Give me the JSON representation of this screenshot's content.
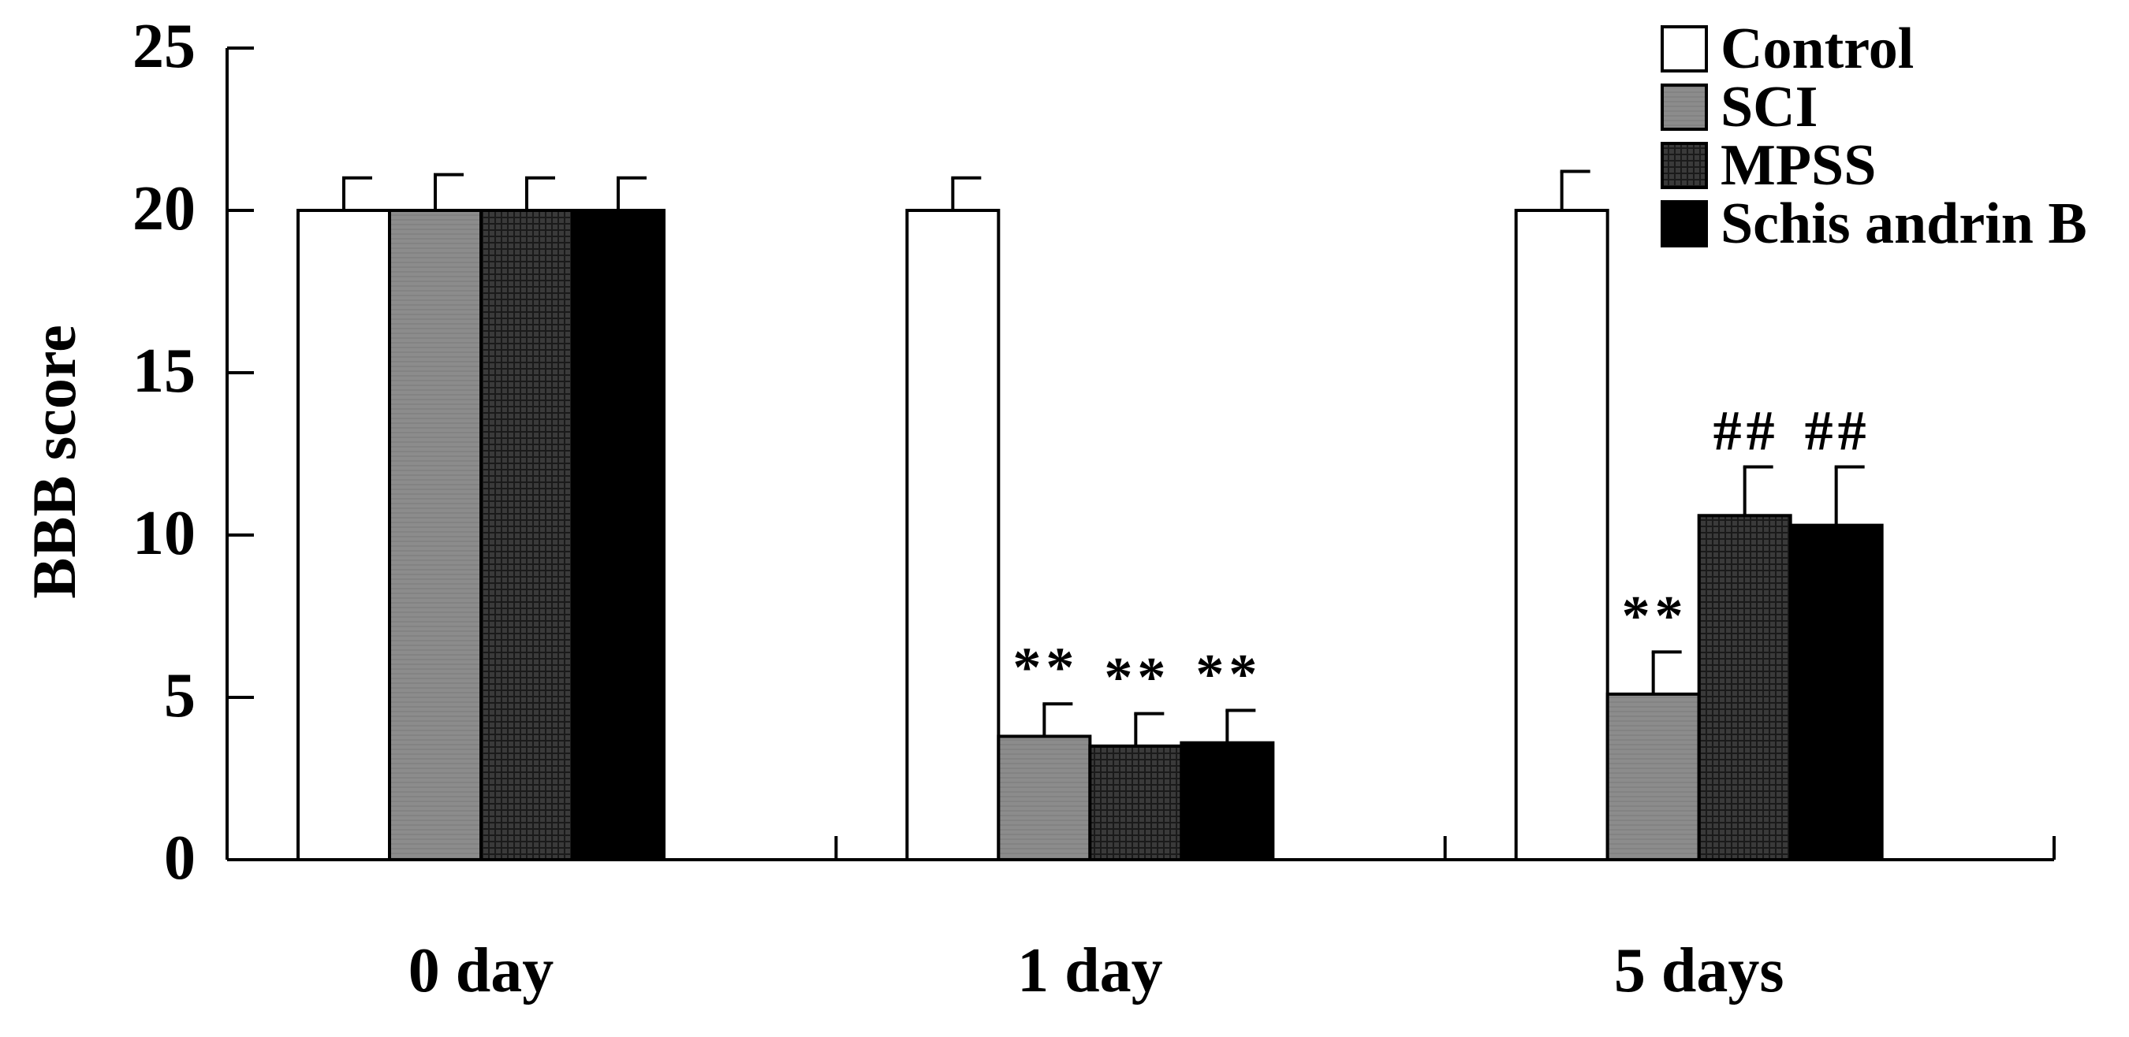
{
  "chart_data": {
    "type": "bar",
    "title": "",
    "xlabel": "",
    "ylabel": "BBB score",
    "ylim": [
      0,
      25
    ],
    "yticks": [
      "0",
      "5",
      "10",
      "15",
      "20",
      "25"
    ],
    "categories": [
      "0 day",
      "1 day",
      "5 days"
    ],
    "legend_position": "top-right",
    "grid": false,
    "series": [
      {
        "name": "Control",
        "fill": "#ffffff",
        "pattern": "none",
        "values": [
          20,
          20,
          20
        ],
        "errors": [
          1.0,
          1.0,
          1.2
        ],
        "annotations": [
          "",
          "",
          ""
        ]
      },
      {
        "name": "SCI",
        "fill": "#8c8c8c",
        "pattern": "fine-lines",
        "values": [
          20,
          3.8,
          5.1
        ],
        "errors": [
          1.1,
          1.0,
          1.3
        ],
        "annotations": [
          "",
          "**",
          "**"
        ]
      },
      {
        "name": "MPSS",
        "fill": "#3a3a3a",
        "pattern": "crosshatch",
        "values": [
          20,
          3.5,
          10.6
        ],
        "errors": [
          1.0,
          1.0,
          1.5
        ],
        "annotations": [
          "",
          "**",
          "##"
        ]
      },
      {
        "name": "Schis andrin B",
        "fill": "#000000",
        "pattern": "none",
        "values": [
          20,
          3.6,
          10.3
        ],
        "errors": [
          1.0,
          1.0,
          1.8
        ],
        "annotations": [
          "",
          "**",
          "##"
        ]
      }
    ]
  }
}
